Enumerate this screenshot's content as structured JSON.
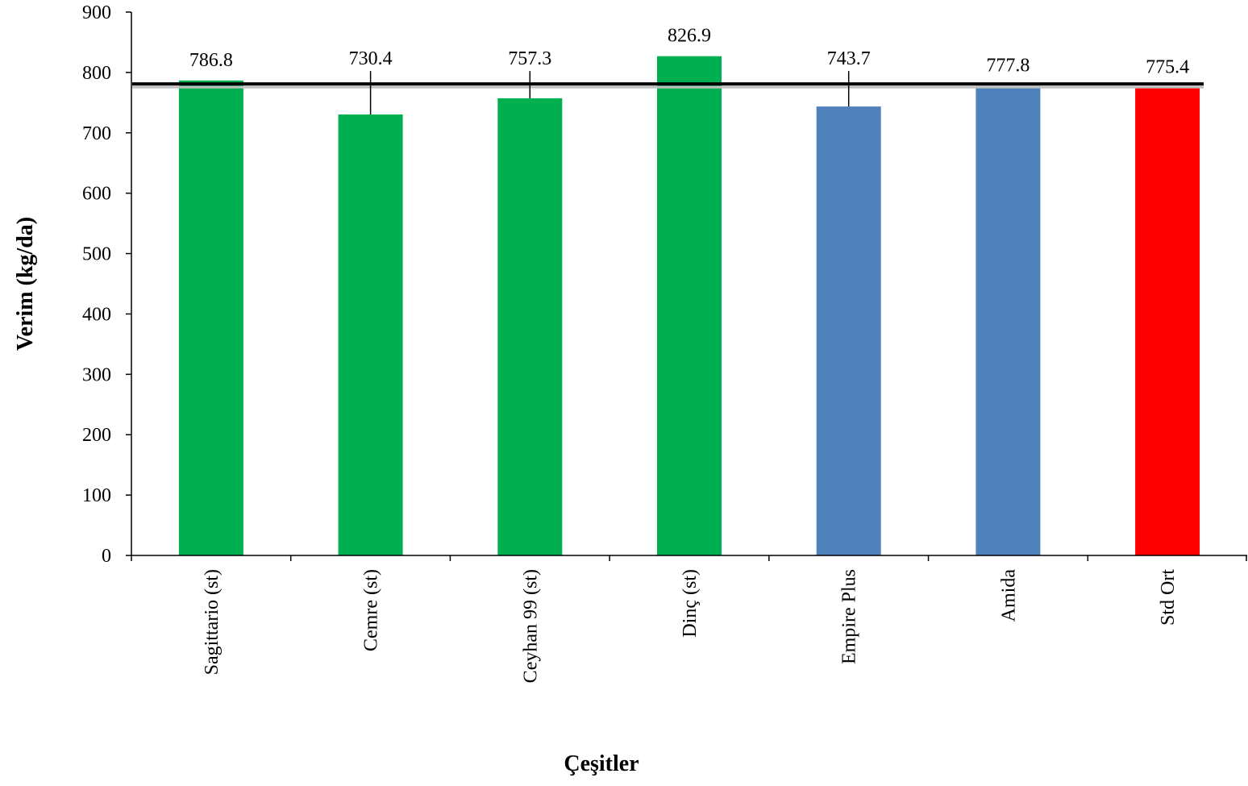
{
  "chart_data": {
    "type": "bar",
    "title": "",
    "xlabel": "Çeşitler",
    "ylabel": "Verim (kg/da)",
    "ylim": [
      0,
      900
    ],
    "yticks": [
      "0",
      "100",
      "200",
      "300",
      "400",
      "500",
      "600",
      "700",
      "800",
      "900"
    ],
    "grid": false,
    "categories": [
      "Sagittario (st)",
      "Cemre (st)",
      "Ceyhan 99 (st)",
      "Dinç (st)",
      "Empire Plus",
      "Amida",
      "Std Ort"
    ],
    "values": [
      786.8,
      730.4,
      757.3,
      826.9,
      743.7,
      777.8,
      775.4
    ],
    "data_labels": [
      "786.8",
      "730.4",
      "757.3",
      "826.9",
      "743.7",
      "777.8",
      "775.4"
    ],
    "bar_colors": [
      "#00b050",
      "#00b050",
      "#00b050",
      "#00b050",
      "#4f81bd",
      "#4f81bd",
      "#ff0000"
    ],
    "reference_line": {
      "value": 781
    },
    "label_leaders": [
      false,
      true,
      true,
      false,
      true,
      false,
      false
    ]
  }
}
